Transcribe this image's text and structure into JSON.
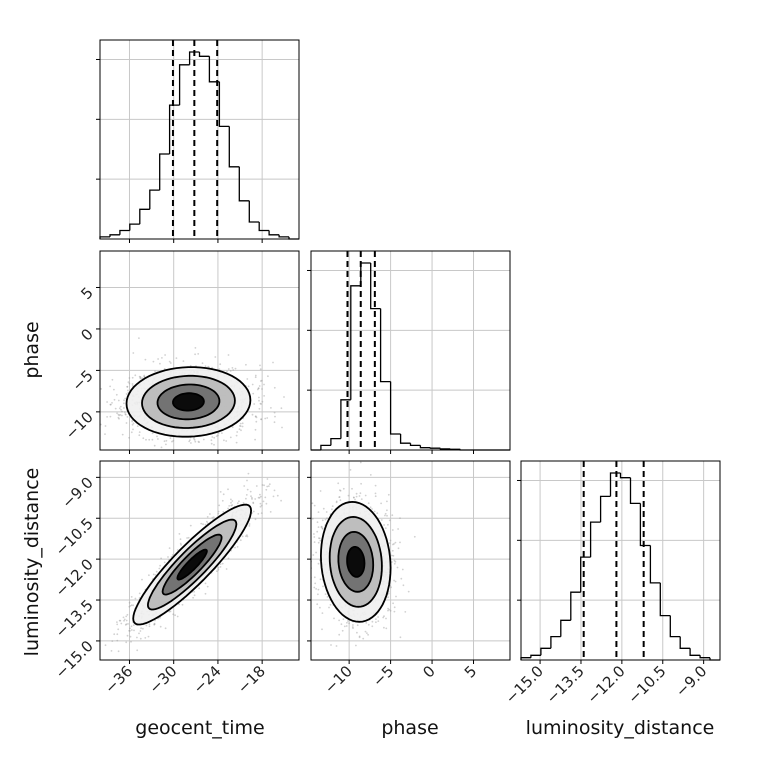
{
  "chart_data": {
    "type": "corner",
    "parameters": [
      "geocent_time",
      "phase",
      "luminosity_distance"
    ],
    "ranges": {
      "geocent_time": [
        -40,
        -13
      ],
      "phase": [
        -14.6,
        9.4
      ],
      "luminosity_distance": [
        -15.7,
        -8.4
      ]
    },
    "ticks": {
      "geocent_time": [
        -36,
        -30,
        -24,
        -18
      ],
      "phase": [
        -10,
        -5,
        0,
        5
      ],
      "luminosity_distance": [
        -15.0,
        -13.5,
        -12.0,
        -10.5,
        -9.0
      ]
    },
    "tick_labels": {
      "geocent_time": [
        "−36",
        "−30",
        "−24",
        "−18"
      ],
      "phase": [
        "−10",
        "−5",
        "0",
        "5"
      ],
      "luminosity_distance": [
        "−15.0",
        "−13.5",
        "−12.0",
        "−10.5",
        "−9.0"
      ]
    },
    "quantiles": {
      "geocent_time": [
        -30.1,
        -27.2,
        -24.1
      ],
      "phase": [
        -10.2,
        -8.6,
        -6.9
      ],
      "luminosity_distance": [
        -13.4,
        -12.2,
        -11.2
      ]
    },
    "histograms": {
      "geocent_time": {
        "edges": [
          -40,
          -38.65,
          -37.3,
          -35.95,
          -34.6,
          -33.25,
          -31.9,
          -30.55,
          -29.2,
          -27.85,
          -26.5,
          -25.15,
          -23.8,
          -22.45,
          -21.1,
          -19.75,
          -18.4,
          -17.05,
          -15.7,
          -14.35,
          -13
        ],
        "counts": [
          1,
          2,
          4,
          7,
          14,
          23,
          40,
          63,
          82,
          88,
          86,
          74,
          53,
          34,
          18,
          8,
          4,
          2,
          1,
          0
        ]
      },
      "phase": {
        "edges": [
          -14.6,
          -13.4,
          -12.2,
          -11,
          -9.8,
          -8.6,
          -7.4,
          -6.2,
          -5,
          -3.8,
          -2.6,
          -1.4,
          -0.2,
          1,
          2.2,
          3.4,
          4.6,
          5.8,
          7,
          8.2,
          9.4
        ],
        "counts": [
          0,
          2,
          5,
          22,
          72,
          82,
          62,
          30,
          7,
          3,
          2,
          1,
          0.8,
          0.5,
          0.3,
          0,
          0,
          0,
          0,
          0
        ]
      },
      "luminosity_distance": {
        "edges": [
          -15.7,
          -15.335,
          -14.97,
          -14.605,
          -14.24,
          -13.875,
          -13.51,
          -13.145,
          -12.78,
          -12.415,
          -12.05,
          -11.685,
          -11.32,
          -10.955,
          -10.59,
          -10.225,
          -9.86,
          -9.495,
          -9.13,
          -8.765,
          -8.4
        ],
        "counts": [
          1,
          2,
          5,
          10,
          17,
          29,
          44,
          59,
          70,
          80,
          78,
          67,
          49,
          33,
          19,
          10,
          5,
          2,
          1,
          0
        ]
      }
    },
    "pairs": [
      {
        "x": "geocent_time",
        "y": "phase",
        "mean": [
          -28,
          -8.8
        ],
        "sd": [
          4.2,
          2.1
        ],
        "corr": 0.05,
        "points": 1500,
        "seed": 11
      },
      {
        "x": "geocent_time",
        "y": "luminosity_distance",
        "mean": [
          -27.5,
          -12.2
        ],
        "sd": [
          4.0,
          1.1
        ],
        "corr": 0.9,
        "points": 1500,
        "seed": 23
      },
      {
        "x": "phase",
        "y": "luminosity_distance",
        "mean": [
          -9.2,
          -12.1
        ],
        "sd": [
          2.1,
          1.1
        ],
        "corr": -0.1,
        "points": 1400,
        "seed": 37
      }
    ],
    "contour_levels_sigma": [
      0.5,
      1.0,
      1.5,
      2.0
    ],
    "grid": true,
    "legend": "none"
  }
}
